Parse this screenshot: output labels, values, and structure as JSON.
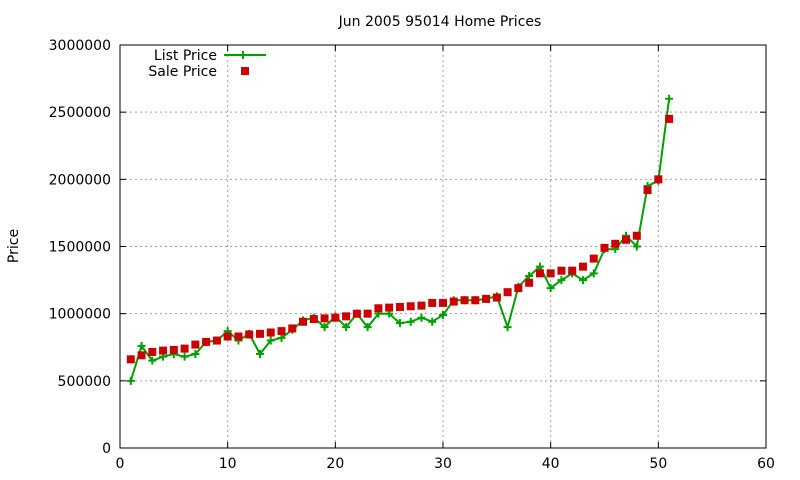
{
  "chart_data": {
    "type": "line",
    "title": "Jun 2005 95014 Home Prices",
    "xlabel": "",
    "ylabel": "Price",
    "xlim": [
      0,
      60
    ],
    "ylim": [
      0,
      3000000
    ],
    "x_ticks": [
      0,
      10,
      20,
      30,
      40,
      50,
      60
    ],
    "y_ticks": [
      0,
      500000,
      1000000,
      1500000,
      2000000,
      2500000,
      3000000
    ],
    "grid": true,
    "legend_position": "top-left",
    "series": [
      {
        "name": "List Price",
        "style": "line-plus",
        "color": "#00a000",
        "x": [
          1,
          2,
          3,
          4,
          5,
          6,
          7,
          8,
          9,
          10,
          11,
          12,
          13,
          14,
          15,
          16,
          17,
          18,
          19,
          20,
          21,
          22,
          23,
          24,
          25,
          26,
          27,
          28,
          29,
          30,
          31,
          32,
          33,
          34,
          35,
          36,
          37,
          38,
          39,
          40,
          41,
          42,
          43,
          44,
          45,
          46,
          47,
          48,
          49,
          50,
          51
        ],
        "y": [
          500000,
          760000,
          650000,
          680000,
          700000,
          680000,
          700000,
          790000,
          800000,
          870000,
          800000,
          850000,
          700000,
          800000,
          820000,
          880000,
          950000,
          970000,
          900000,
          980000,
          900000,
          1000000,
          900000,
          1000000,
          1000000,
          930000,
          940000,
          970000,
          940000,
          990000,
          1100000,
          1100000,
          1100000,
          1110000,
          1130000,
          900000,
          1200000,
          1280000,
          1350000,
          1190000,
          1250000,
          1300000,
          1250000,
          1300000,
          1480000,
          1480000,
          1580000,
          1500000,
          1950000,
          1990000,
          2600000
        ]
      },
      {
        "name": "Sale Price",
        "style": "square",
        "color": "#cc0000",
        "x": [
          1,
          2,
          3,
          4,
          5,
          6,
          7,
          8,
          9,
          10,
          11,
          12,
          13,
          14,
          15,
          16,
          17,
          18,
          19,
          20,
          21,
          22,
          23,
          24,
          25,
          26,
          27,
          28,
          29,
          30,
          31,
          32,
          33,
          34,
          35,
          36,
          37,
          38,
          39,
          40,
          41,
          42,
          43,
          44,
          45,
          46,
          47,
          48,
          49,
          50,
          51
        ],
        "y": [
          660000,
          690000,
          715000,
          725000,
          730000,
          740000,
          770000,
          790000,
          800000,
          830000,
          830000,
          845000,
          850000,
          860000,
          870000,
          890000,
          940000,
          960000,
          965000,
          970000,
          980000,
          1000000,
          1000000,
          1040000,
          1045000,
          1050000,
          1055000,
          1060000,
          1080000,
          1080000,
          1090000,
          1100000,
          1100000,
          1110000,
          1120000,
          1160000,
          1190000,
          1230000,
          1300000,
          1300000,
          1320000,
          1320000,
          1350000,
          1410000,
          1490000,
          1520000,
          1550000,
          1580000,
          1920000,
          2000000,
          2450000
        ]
      }
    ]
  }
}
